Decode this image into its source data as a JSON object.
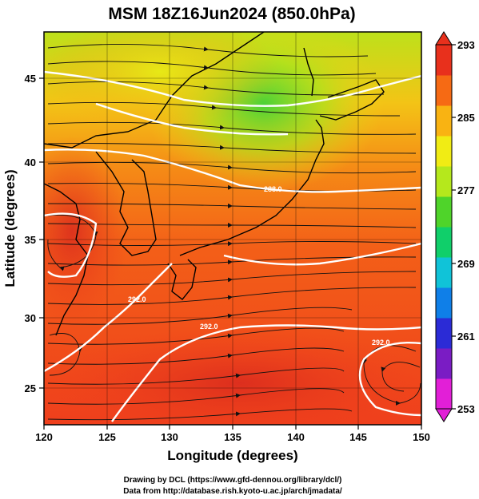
{
  "title": "MSM 18Z16Jun2024 (850.0hPa)",
  "x_axis": {
    "label": "Longitude (degrees)",
    "ticks": [
      "120",
      "125",
      "130",
      "135",
      "140",
      "145",
      "150"
    ],
    "range": [
      120,
      150
    ]
  },
  "y_axis": {
    "label": "Latitude  (degrees)",
    "ticks": [
      "25",
      "30",
      "35",
      "40",
      "45"
    ],
    "range": [
      22.5,
      47.5
    ]
  },
  "colorbar": {
    "ticks": [
      "293",
      "285",
      "277",
      "269",
      "261",
      "253"
    ],
    "min": 253,
    "max": 293,
    "colors": [
      "#e21fd7",
      "#7a1cc4",
      "#2b2bd6",
      "#0f7fe8",
      "#10c3d8",
      "#10cf6a",
      "#4fd42a",
      "#b5e81c",
      "#f1ec14",
      "#f9b312",
      "#f66a14",
      "#e8301c"
    ]
  },
  "contour_labels": [
    "288.0",
    "292.0",
    "292.0",
    "292.0"
  ],
  "credits": {
    "line1": "Drawing by DCL (https://www.gfd-dennou.org/library/dcl/)",
    "line2": "Data from http://database.rish.kyoto-u.ac.jp/arch/jmadata/"
  }
}
